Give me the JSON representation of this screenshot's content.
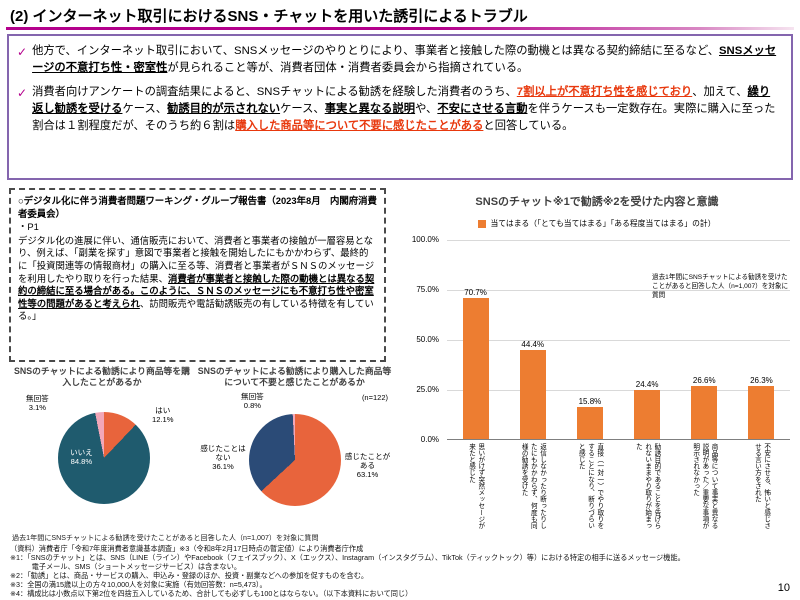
{
  "page": {
    "title": "(2) インターネット取引におけるSNS・チャットを用いた誘引によるトラブル",
    "page_number": "10"
  },
  "intro": {
    "bullet_mark": "✓",
    "bullet1": [
      {
        "t": "他方で、インターネット取引において、SNSメッセージのやりとりにより、事業者と接触した際の動機とは異なる契約締結に至るなど、"
      },
      {
        "t": "SNSメッセージの不意打ち性・密室性",
        "c": "bu"
      },
      {
        "t": "が見られること等が、消費者団体・消費者委員会から指摘されている。"
      }
    ],
    "bullet2": [
      {
        "t": "消費者向けアンケートの調査結果によると、SNSチャットによる勧誘を経験した消費者のうち、"
      },
      {
        "t": "7割以上が不意打ち性を感じており",
        "c": "ru"
      },
      {
        "t": "、加えて、"
      },
      {
        "t": "繰り返し勧誘を受ける",
        "c": "bu"
      },
      {
        "t": "ケース、"
      },
      {
        "t": "勧誘目的が示されない",
        "c": "bu"
      },
      {
        "t": "ケース、"
      },
      {
        "t": "事実と異なる説明",
        "c": "bu"
      },
      {
        "t": "や、"
      },
      {
        "t": "不安にさせる言動",
        "c": "bu"
      },
      {
        "t": "を伴うケースも一定数存在。実際に購入に至った割合は１割程度だが、そのうち約６割は"
      },
      {
        "t": "購入した商品等について不要に感じたことがある",
        "c": "ru"
      },
      {
        "t": "と回答している。"
      }
    ]
  },
  "report_box": {
    "heading": "○デジタル化に伴う消費者問題ワーキング・グループ報告書（2023年8月　内閣府消費者委員会）",
    "page_ref": "・P1",
    "body": [
      {
        "t": "デジタル化の進展に伴い、通信販売において、消費者と事業者の接触が一層容易となり、例えば、「副業を探す」意図で事業者と接触を開始したにもかかわらず、最終的に「投資関連等の情報商材」の購入に至る等、消費者と事業者がＳＮＳのメッセージを利用したやり取りを行った結果、"
      },
      {
        "t": "消費者が事業者と接触した際の動機とは異なる契約の締結に至る場合がある。このように、ＳＮＳのメッセージにも不意打ち性や密室性等の問題があると考えられ",
        "c": "bu"
      },
      {
        "t": "、訪問販売や電話勧誘販売の有している特徴を有している。」"
      }
    ]
  },
  "pie_section": {
    "note": "過去1年間にSNSチャットによる勧誘を受けたことがあると回答した人（n=1,007）を対象に質問"
  },
  "chart_data": [
    {
      "type": "bar",
      "title": "SNSのチャット※1で勧誘※2を受けた内容と意識",
      "legend_label": "当てはまる（「とても当てはまる」「ある程度当てはまる」の計）",
      "note": "過去1年間にSNSチャットによる勧誘を受けたことがあると回答した人（n=1,007）を対象に質問",
      "categories": [
        "思いがけず突然メッセージが来たと感じた",
        "返信しなかったり断ったりしたにもかかわらず、何度も同様の勧誘を受けた",
        "直接（一対一）でやり取りをすることになり、断りづらいと感じた",
        "勧誘目的であることを告げられないままやり取りが始まった",
        "商品等について事実と異なる説明があった／重要な事項が明示されなかった",
        "不安にさせる、怖いと感じさせる言い方をされた"
      ],
      "values": [
        70.7,
        44.4,
        15.8,
        24.4,
        26.6,
        26.3
      ],
      "value_labels": [
        "70.7%",
        "44.4%",
        "15.8%",
        "24.4%",
        "26.6%",
        "26.3%"
      ],
      "ylim": [
        0,
        100
      ],
      "yticks": [
        "100.0%",
        "75.0%",
        "50.0%",
        "25.0%",
        "0.0%"
      ],
      "bar_color": "#ED7D31",
      "grid": true,
      "legend_position": "top"
    },
    {
      "type": "pie",
      "title": "SNSのチャットによる勧誘により商品等を購入したことがあるか",
      "slices": [
        {
          "label": "はい",
          "value": 12.1,
          "value_label": "12.1%",
          "color": "#E8643C"
        },
        {
          "label": "いいえ",
          "value": 84.8,
          "value_label": "84.8%",
          "color": "#1F5B6E"
        },
        {
          "label": "無回答",
          "value": 3.1,
          "value_label": "3.1%",
          "color": "#F2A7B8"
        }
      ]
    },
    {
      "type": "pie",
      "title": "SNSのチャットによる勧誘により購入した商品等について不要と感じたことがあるか",
      "n_label": "(n=122)",
      "slices": [
        {
          "label": "感じたことがある",
          "value": 63.1,
          "value_label": "63.1%",
          "color": "#E8643C"
        },
        {
          "label": "感じたことはない",
          "value": 36.1,
          "value_label": "36.1%",
          "color": "#2B4B77"
        },
        {
          "label": "無回答",
          "value": 0.8,
          "value_label": "0.8%",
          "color": "#F2A7B8"
        }
      ]
    }
  ],
  "footnotes": [
    "（資料）消費者庁「令和7年度消費者意識基本調査」※3（令和8年2月17日時点の暫定値）により消費者庁作成",
    "※1：「SNSのチャット」とは、SNS（LINE（ライン）やFacebook（フェイスブック）、X（エックス）、Instagram（インスタグラム）、TikTok（ティックトック）等）における特定の相手に送るメッセージ機能。",
    "　　　電子メール、SMS（ショートメッセージサービス）は含まない。",
    "※2：「勧誘」とは、商品・サービスの購入、申込み・登録のほか、投資・副業などへの参加を促すものを含む。",
    "※3：全国の満15歳以上の方々10,000人を対象に実施（有効回答数：n=5,473）。",
    "※4：構成比は小数点以下第2位を四捨五入しているため、合計しても必ずしも100とはならない。（以下本資料において同じ）"
  ],
  "colors": {
    "accent_magenta": "#B4008C",
    "box_border_purple": "#8465AE",
    "highlight_red": "#E8380D",
    "bar_orange": "#ED7D31",
    "pie_orange": "#E8643C",
    "pie_dark_teal": "#1F5B6E",
    "pie_dark_blue": "#2B4B77",
    "pie_pink": "#F2A7B8"
  }
}
